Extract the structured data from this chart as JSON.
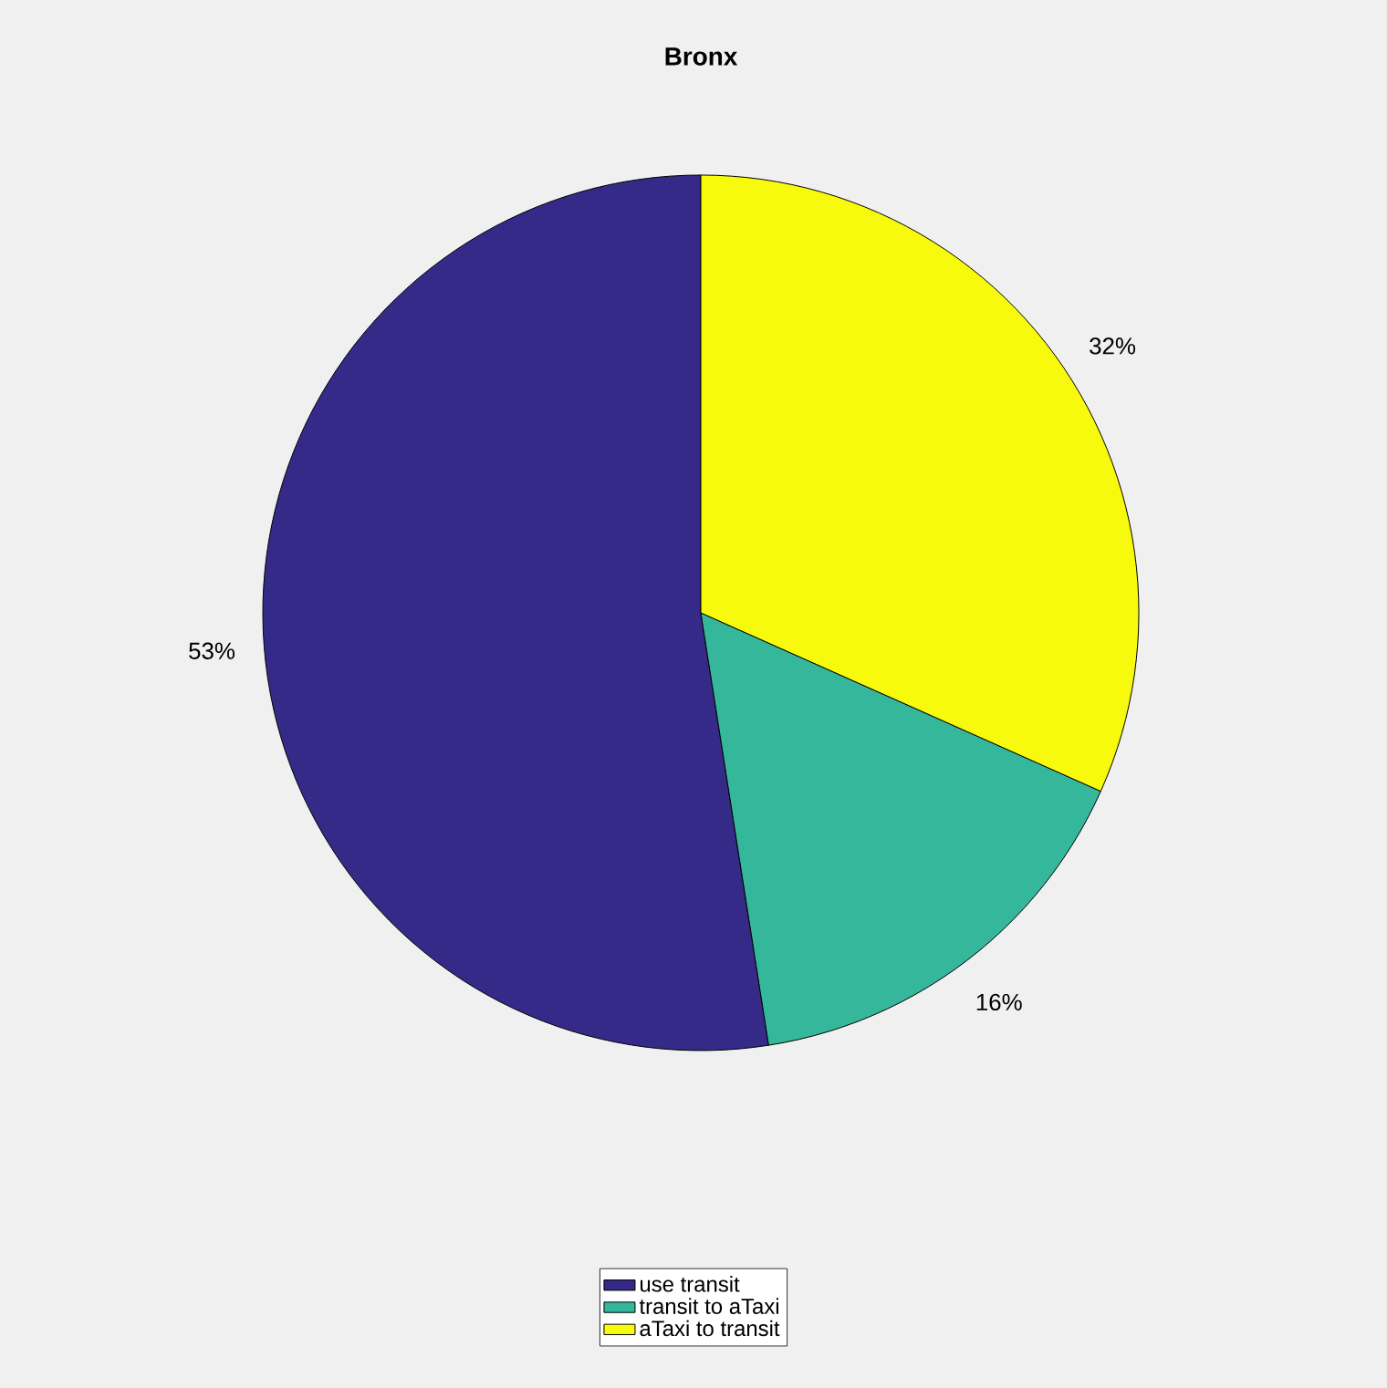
{
  "chart_data": {
    "type": "pie",
    "title": "Bronx",
    "categories": [
      "use transit",
      "transit to aTaxi",
      "aTaxi to transit"
    ],
    "values": [
      53,
      16,
      32
    ],
    "colors": [
      "#352a87",
      "#35b79c",
      "#f8fa0d"
    ],
    "value_labels": [
      "53%",
      "16%",
      "32%"
    ],
    "legend": "bottom"
  }
}
